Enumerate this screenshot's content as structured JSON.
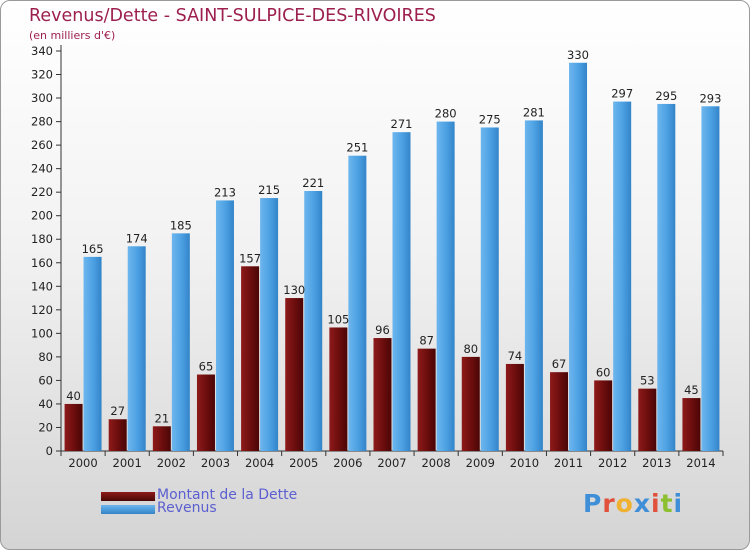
{
  "title": "Revenus/Dette - SAINT-SULPICE-DES-RIVOIRES",
  "subtitle": "(en milliers d'€)",
  "legend": {
    "dette": "Montant de la Dette",
    "revenus": "Revenus"
  },
  "logo": {
    "text": "Proxiti",
    "colors": [
      "#3f8fd8",
      "#e0503a",
      "#f0b030",
      "#3f8fd8",
      "#e0503a",
      "#8cc030",
      "#3f8fd8"
    ]
  },
  "colors": {
    "dette": "#6b0d0d",
    "revenus": "#4ba0e2",
    "title": "#9c1f4e",
    "axis": "#333333"
  },
  "chart_data": {
    "type": "bar",
    "categories": [
      "2000",
      "2001",
      "2002",
      "2003",
      "2004",
      "2005",
      "2006",
      "2007",
      "2008",
      "2009",
      "2010",
      "2011",
      "2012",
      "2013",
      "2014"
    ],
    "series": [
      {
        "name": "Montant de la Dette",
        "values": [
          40,
          27,
          21,
          65,
          157,
          130,
          105,
          96,
          87,
          80,
          74,
          67,
          60,
          53,
          45
        ]
      },
      {
        "name": "Revenus",
        "values": [
          165,
          174,
          185,
          213,
          215,
          221,
          251,
          271,
          280,
          275,
          281,
          330,
          297,
          295,
          293
        ]
      }
    ],
    "title": "Revenus/Dette - SAINT-SULPICE-DES-RIVOIRES",
    "ylabel": "(en milliers d'€)",
    "ylim": [
      0,
      340
    ],
    "yticks": [
      0,
      20,
      40,
      60,
      80,
      100,
      120,
      140,
      160,
      180,
      200,
      220,
      240,
      260,
      280,
      300,
      320,
      340
    ],
    "grid": false,
    "legend_position": "bottom-left",
    "data_labels": true
  }
}
